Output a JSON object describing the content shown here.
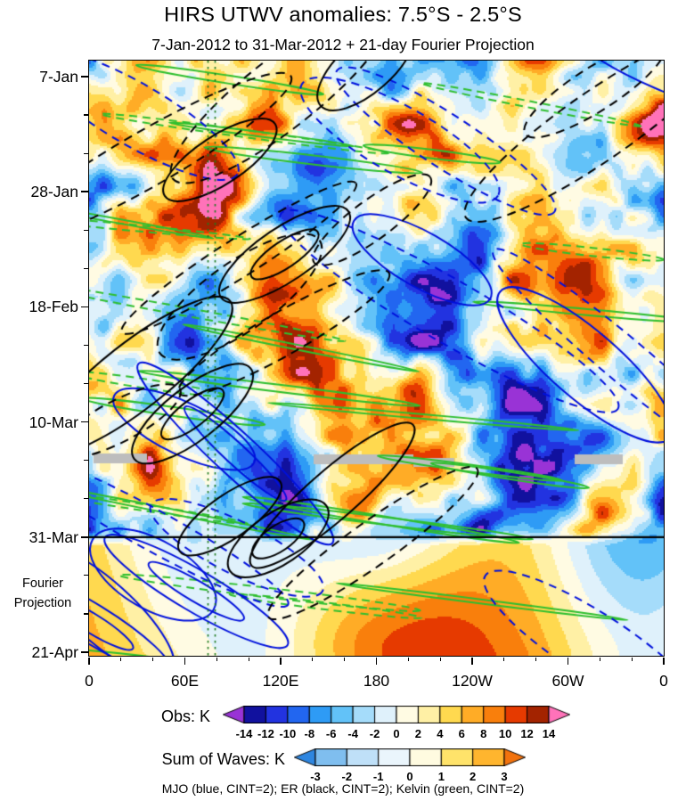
{
  "title": "HIRS UTWV anomalies: 7.5°S - 2.5°S",
  "subtitle": "7-Jan-2012 to 31-Mar-2012 + 21-day Fourier Projection",
  "annotation": {
    "line1": "Fourier",
    "line2": "Projection"
  },
  "caption": "MJO (blue, CINT=2); ER (black, CINT=2); Kelvin (green, CINT=2)",
  "chart_data": {
    "type": "heatmap",
    "title": "HIRS UTWV anomalies: 7.5°S - 2.5°S",
    "subtitle": "7-Jan-2012 to 31-Mar-2012 + 21-day Fourier Projection",
    "x_axis": {
      "ticks": [
        "0",
        "60E",
        "120E",
        "180",
        "120W",
        "60W",
        "0"
      ],
      "minor_per_major": 2,
      "range_deg": [
        0,
        360
      ]
    },
    "y_axis": {
      "ticks": [
        "7-Jan",
        "28-Jan",
        "18-Feb",
        "10-Mar",
        "31-Mar",
        "21-Apr"
      ],
      "minor_per_major": 2,
      "time_increases": "downward"
    },
    "divider": {
      "at_tick": "31-Mar"
    },
    "obs_range": [
      -14,
      14
    ],
    "waves_range": [
      -3,
      3
    ],
    "value_step": 2,
    "colorbars": [
      {
        "label": "Obs: K",
        "tick_labels": [
          "-14",
          "-12",
          "-10",
          "-8",
          "-6",
          "-4",
          "-2",
          "0",
          "2",
          "4",
          "6",
          "8",
          "10",
          "12",
          "14"
        ],
        "colors": [
          "#9933D6",
          "#11119E",
          "#2233E0",
          "#2266F0",
          "#2E9BF5",
          "#62C2F8",
          "#A5DCFA",
          "#DFF1FB",
          "#FFFBE3",
          "#FFF0A5",
          "#FFD94F",
          "#FFAC26",
          "#F97F0C",
          "#E63A00",
          "#A32300",
          "#FF72B9"
        ]
      },
      {
        "label": "Sum of Waves: K",
        "tick_labels": [
          "-3",
          "-2",
          "-1",
          "0",
          "1",
          "2",
          "3"
        ],
        "colors": [
          "#2E86E0",
          "#7FBEEF",
          "#BFE0F8",
          "#EAF5FC",
          "#FFFBE0",
          "#FFE36A",
          "#FFB52E",
          "#F2720D"
        ]
      }
    ],
    "contours": [
      {
        "name": "MJO",
        "color": "#0010DC",
        "cint": 2,
        "styles": [
          "solid",
          "dashed"
        ]
      },
      {
        "name": "ER",
        "color": "#000000",
        "cint": 2,
        "styles": [
          "solid",
          "dashed"
        ]
      },
      {
        "name": "Kelvin",
        "color": "#2FBF2F",
        "cint": 2,
        "styles": [
          "solid",
          "dashed"
        ]
      }
    ],
    "style": {
      "reference_line_color": "#1E7A1E",
      "missing_data_color": "#BDBDBD",
      "divider_color": "#000000"
    }
  }
}
